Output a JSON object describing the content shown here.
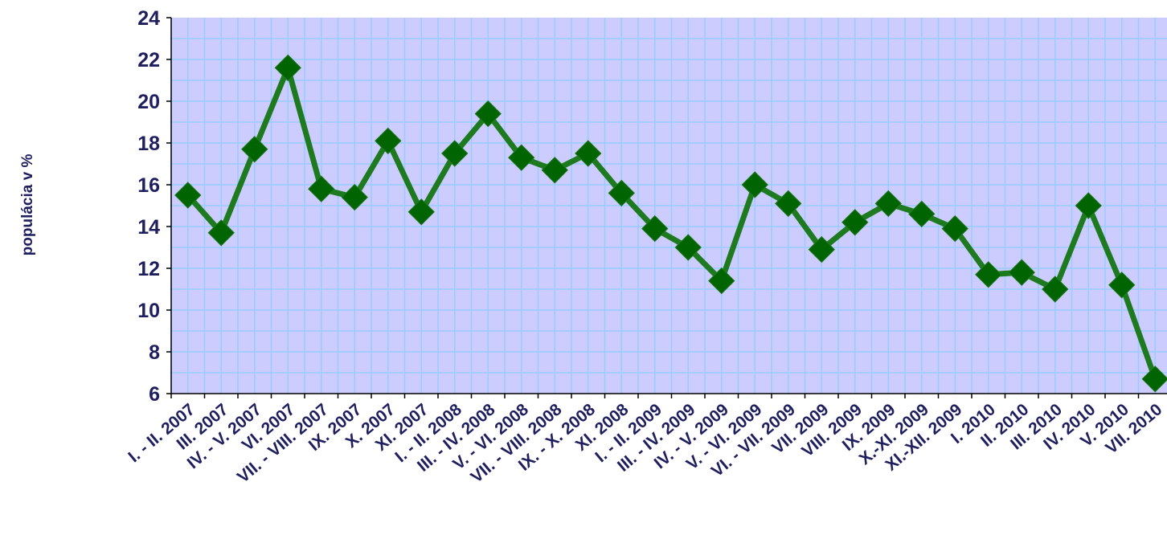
{
  "chart_data": {
    "type": "line",
    "ylabel": "populácia v %",
    "ylim": [
      6,
      24
    ],
    "yticks": [
      6,
      8,
      10,
      12,
      14,
      16,
      18,
      20,
      22,
      24
    ],
    "grid": true,
    "colors": {
      "plot_background": "#ccccff",
      "grid": "#99ccff",
      "line": "#1e7a1e",
      "marker": "#006400",
      "text": "#1f1f5f"
    },
    "categories": [
      "I. - II. 2007",
      "III. 2007",
      "IV. - V. 2007",
      "VI. 2007",
      "VII. - VIII. 2007",
      "IX. 2007",
      "X. 2007",
      "XI. 2007",
      "I. - II. 2008",
      "III. - IV. 2008",
      "V. - VI. 2008",
      "VII. - VIII. 2008",
      "IX. - X. 2008",
      "XI. 2008",
      "I. - II. 2009",
      "III. - IV. 2009",
      "IV. - V. 2009",
      "V. - VI. 2009",
      "VI. - VII. 2009",
      "VII. 2009",
      "VIII. 2009",
      "IX. 2009",
      "X.-XI. 2009",
      "XI.-XII. 2009",
      "I. 2010",
      "II. 2010",
      "III. 2010",
      "IV. 2010",
      "V. 2010",
      "VII. 2010"
    ],
    "series": [
      {
        "values": [
          15.5,
          13.7,
          17.7,
          21.6,
          15.8,
          15.4,
          18.1,
          14.7,
          17.5,
          19.4,
          17.3,
          16.7,
          17.5,
          15.6,
          13.9,
          13.0,
          11.4,
          16.0,
          15.1,
          12.9,
          14.2,
          15.1,
          14.6,
          13.9,
          11.7,
          11.8,
          11.0,
          15.0,
          11.2,
          6.7
        ]
      }
    ]
  }
}
